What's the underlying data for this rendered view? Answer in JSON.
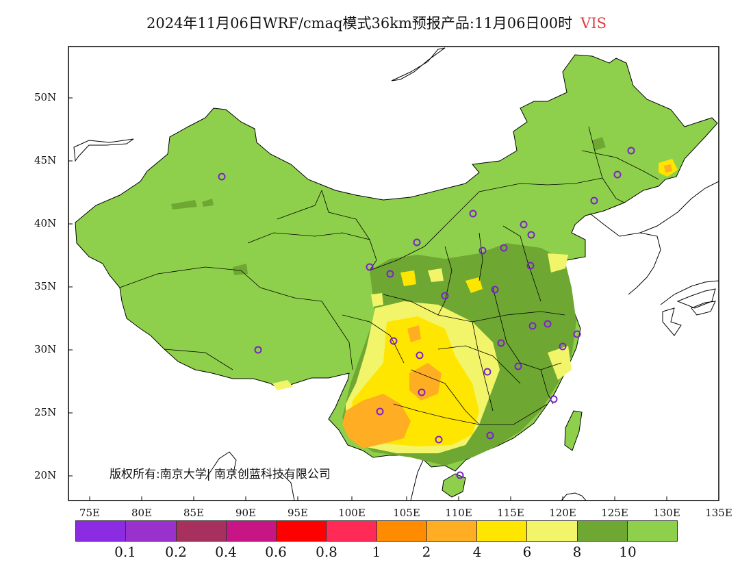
{
  "title": {
    "text": "2024年11月06日WRF/cmaq模式36km预报产品:11月06日00时",
    "variable": "VIS",
    "variable_color": "#e23b3b"
  },
  "axes": {
    "lat_labels": [
      "50N",
      "45N",
      "40N",
      "35N",
      "30N",
      "25N",
      "20N"
    ],
    "lon_labels": [
      "75E",
      "80E",
      "85E",
      "90E",
      "95E",
      "100E",
      "105E",
      "110E",
      "115E",
      "120E",
      "125E",
      "130E",
      "135E"
    ]
  },
  "copyright": "版权所有:南京大学| 南京创蓝科技有限公司",
  "legend": {
    "colors": [
      "#8b2be2",
      "#9932cc",
      "#a8305e",
      "#c71585",
      "#ff0000",
      "#ff2a55",
      "#ff8c00",
      "#ffad22",
      "#ffe600",
      "#f2f56a",
      "#6ea832",
      "#8ed04b"
    ],
    "labels": [
      "0.1",
      "0.2",
      "0.4",
      "0.6",
      "0.8",
      "1",
      "2",
      "4",
      "6",
      "8",
      "10"
    ]
  },
  "palette": {
    "land": "#8ed04b",
    "land_dark": "#6ea832",
    "yellow": "#ffe600",
    "light_yellow": "#f2f56a",
    "orange": "#ffad22",
    "station_marker": "#7b22c8"
  }
}
